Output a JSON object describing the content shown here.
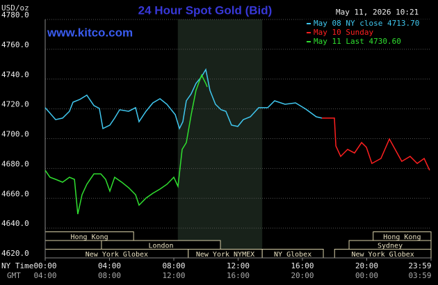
{
  "chart_data": {
    "type": "line",
    "title": "24 Hour Spot Gold (Bid)",
    "y_label": "USD/oz",
    "source": "www.kitco.com",
    "timestamp": "May 11, 2026 10:21",
    "x_row_labels": [
      "NY Time",
      "GMT"
    ],
    "xlim": [
      0,
      24
    ],
    "xticks": [
      {
        "value": 0,
        "label": "00:00"
      },
      {
        "value": 4,
        "label": "04:00"
      },
      {
        "value": 8,
        "label": "08:00"
      },
      {
        "value": 12,
        "label": "12:00"
      },
      {
        "value": 16,
        "label": "16:00"
      },
      {
        "value": 20,
        "label": "20:00"
      },
      {
        "value": 24,
        "label": "23:59"
      }
    ],
    "xticks_gmt": [
      "04:00",
      "08:00",
      "12:00",
      "16:00",
      "20:00",
      "00:00",
      "03:59"
    ],
    "ylim": [
      4620,
      4780
    ],
    "yticks": [
      {
        "value": 4620,
        "label": "4620.0"
      },
      {
        "value": 4640,
        "label": "4640.0"
      },
      {
        "value": 4660,
        "label": "4660.0"
      },
      {
        "value": 4680,
        "label": "4680.0"
      },
      {
        "value": 4700,
        "label": "4700.0"
      },
      {
        "value": 4720,
        "label": "4720.0"
      },
      {
        "value": 4740,
        "label": "4740.0"
      },
      {
        "value": 4760,
        "label": "4760.0"
      },
      {
        "value": 4780,
        "label": "4780.0"
      }
    ],
    "grid": true,
    "highlight": [
      8.25,
      13.5
    ],
    "sessions": [
      [
        {
          "label": "Hong Kong",
          "start": 0,
          "end": 5.5
        },
        {
          "label": "Hong Kong",
          "start": 20.4,
          "end": 24
        }
      ],
      [
        {
          "label": "London",
          "start": 3.5,
          "end": 10.9
        },
        {
          "label": "Sydney",
          "start": 18.9,
          "end": 24
        }
      ],
      [
        {
          "label": "New York Globex",
          "start": 0,
          "end": 8.9
        },
        {
          "label": "New York NYMEX",
          "start": 8.9,
          "end": 13.5
        },
        {
          "label": "NY Globex",
          "start": 13.5,
          "end": 17.3
        },
        {
          "label": "New York Globex",
          "start": 18,
          "end": 24
        }
      ]
    ],
    "series": [
      {
        "name": "May 08 NY close 4713.70",
        "color": "#40c8f0",
        "x": [
          0,
          0.2,
          0.65,
          1.08,
          1.51,
          1.73,
          2.16,
          2.59,
          3.03,
          3.37,
          3.59,
          4.02,
          4.32,
          4.63,
          5.19,
          5.62,
          5.84,
          6.27,
          6.7,
          7.14,
          7.57,
          8.09,
          8.35,
          8.56,
          8.78,
          9.08,
          9.38,
          9.73,
          9.99,
          10.25,
          10.59,
          10.94,
          11.24,
          11.59,
          11.98,
          12.32,
          12.76,
          13.28,
          13.84,
          14.27,
          14.92,
          15.57,
          16.22,
          16.86,
          17.21
        ],
        "values": [
          4720.8,
          4718.4,
          4712.8,
          4713.8,
          4718.4,
          4724.5,
          4726.4,
          4729.2,
          4722.2,
          4720.3,
          4706.8,
          4709.1,
          4713.8,
          4719.4,
          4718.4,
          4720.8,
          4711.4,
          4718.4,
          4724.0,
          4726.8,
          4723.1,
          4716.1,
          4706.8,
          4711.4,
          4725.4,
          4730.1,
          4737.1,
          4741.7,
          4746.4,
          4732.4,
          4723.1,
          4719.4,
          4718.4,
          4709.1,
          4708.2,
          4712.8,
          4714.7,
          4720.8,
          4720.8,
          4725.4,
          4723.1,
          4724.0,
          4719.8,
          4714.7,
          4713.8
        ]
      },
      {
        "name": "May 10 Sunday",
        "color": "#ff2020",
        "x": [
          17.21,
          17.99,
          18.08,
          18.38,
          18.81,
          19.24,
          19.68,
          19.98,
          20.32,
          20.88,
          21.41,
          21.84,
          22.18,
          22.7,
          23.14,
          23.57,
          23.91
        ],
        "values": [
          4713.8,
          4713.8,
          4695.1,
          4688.1,
          4692.8,
          4690.4,
          4697.4,
          4694.2,
          4683.4,
          4686.7,
          4699.8,
          4691.4,
          4684.8,
          4688.1,
          4683.4,
          4686.7,
          4678.8
        ]
      },
      {
        "name": "May 11 Last 4730.60",
        "color": "#30e030",
        "x": [
          0,
          0.3,
          0.65,
          1.08,
          1.51,
          1.82,
          2.03,
          2.29,
          2.59,
          3.03,
          3.46,
          3.76,
          4.02,
          4.32,
          4.76,
          5.19,
          5.62,
          5.84,
          6.27,
          6.7,
          7.14,
          7.57,
          8.0,
          8.26,
          8.52,
          8.78,
          9.08,
          9.38,
          9.73,
          9.99,
          10.08
        ],
        "values": [
          4678.8,
          4674.1,
          4672.7,
          4670.8,
          4674.1,
          4672.7,
          4649.4,
          4662.4,
          4669.4,
          4676.4,
          4676.4,
          4672.7,
          4664.8,
          4674.1,
          4670.8,
          4667.1,
          4662.4,
          4655.4,
          4660.1,
          4663.4,
          4666.2,
          4669.4,
          4674.1,
          4668.0,
          4692.8,
          4697.4,
          4716.1,
          4732.4,
          4742.7,
          4737.1,
          4734.7
        ]
      }
    ]
  }
}
